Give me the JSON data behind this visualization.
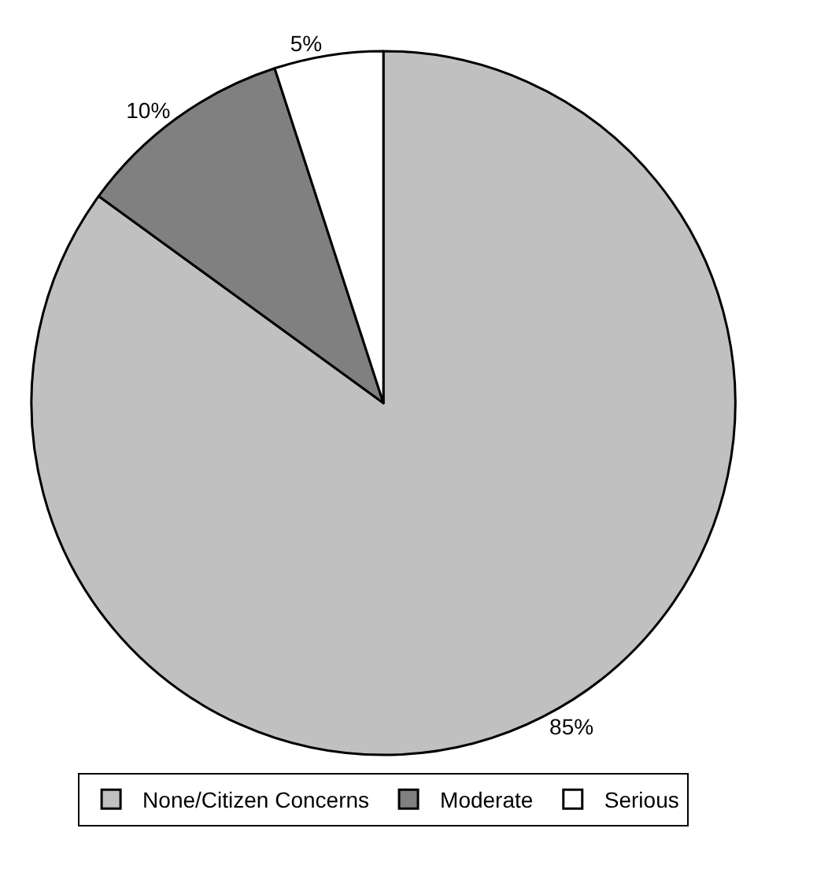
{
  "chart_data": {
    "type": "pie",
    "categories": [
      "None/Citizen Concerns",
      "Moderate",
      "Serious"
    ],
    "values": [
      85,
      10,
      5
    ],
    "colors": [
      "#c0c0c0",
      "#808080",
      "#ffffff"
    ],
    "value_labels": [
      "85%",
      "10%",
      "5%"
    ],
    "legend": "bottom"
  }
}
